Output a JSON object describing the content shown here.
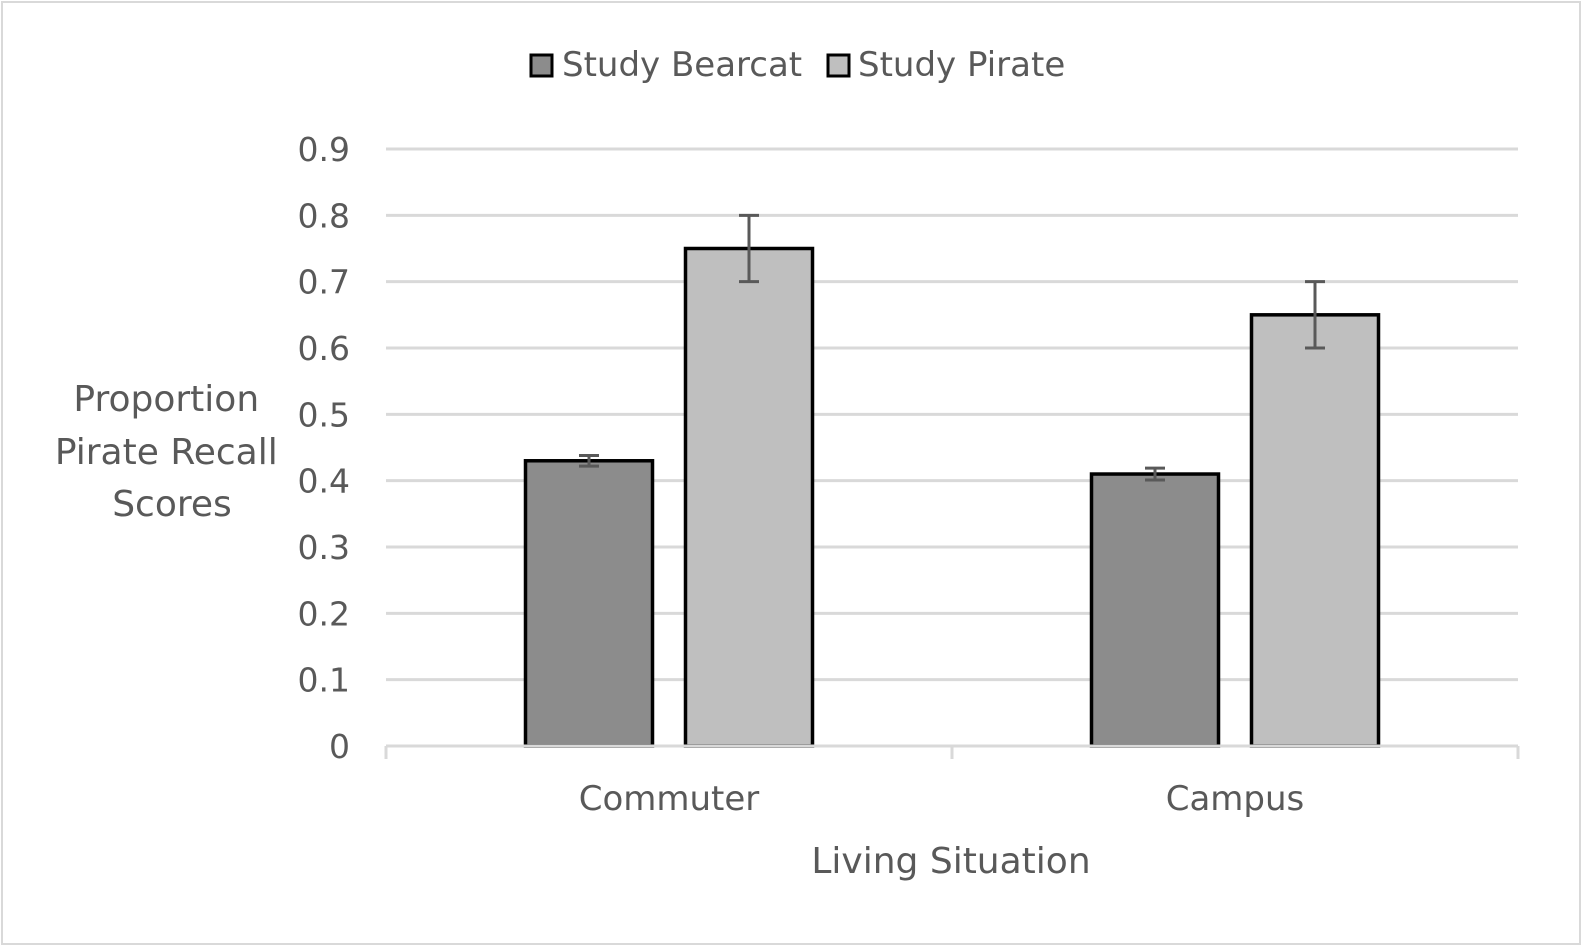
{
  "chart_data": {
    "type": "bar",
    "title": "",
    "xlabel": "Living Situation",
    "ylabel_lines": [
      "Proportion",
      "Pirate Recall",
      "Scores"
    ],
    "categories": [
      "Commuter",
      "Campus"
    ],
    "series": [
      {
        "name": "Study Bearcat",
        "values": [
          0.43,
          0.41
        ],
        "errors": [
          0.008,
          0.009
        ],
        "color": "#8c8c8c"
      },
      {
        "name": "Study Pirate",
        "values": [
          0.75,
          0.65
        ],
        "errors": [
          0.05,
          0.05
        ],
        "color": "#bfbfbf"
      }
    ],
    "ylim": [
      0,
      0.9
    ],
    "yticks": [
      "0",
      "0.1",
      "0.2",
      "0.3",
      "0.4",
      "0.5",
      "0.6",
      "0.7",
      "0.8",
      "0.9"
    ],
    "grid": true,
    "legend_position": "top-center",
    "colors": {
      "gridline": "#d9d9d9",
      "axis": "#d9d9d9",
      "text": "#595959",
      "bar_outline": "#000000",
      "error_bar": "#595959"
    }
  }
}
